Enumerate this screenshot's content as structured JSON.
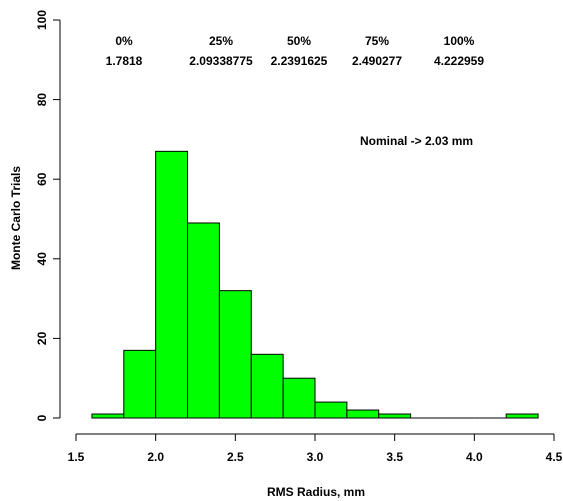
{
  "chart_data": {
    "type": "bar",
    "subtype": "histogram",
    "xlabel": "RMS Radius, mm",
    "ylabel": "Monte Carlo Trials",
    "xlim": [
      1.5,
      4.5
    ],
    "ylim": [
      0,
      100
    ],
    "x_ticks": [
      "1.5",
      "2.0",
      "2.5",
      "3.0",
      "3.5",
      "4.0",
      "4.5"
    ],
    "y_ticks": [
      "0",
      "20",
      "40",
      "60",
      "80",
      "100"
    ],
    "bar_color": "#00ff00",
    "edge_color": "#000000",
    "grid": false,
    "legend": "none",
    "bins": [
      {
        "start": 1.6,
        "end": 1.8,
        "count": 1
      },
      {
        "start": 1.8,
        "end": 2.0,
        "count": 17
      },
      {
        "start": 2.0,
        "end": 2.2,
        "count": 67
      },
      {
        "start": 2.2,
        "end": 2.4,
        "count": 49
      },
      {
        "start": 2.4,
        "end": 2.6,
        "count": 32
      },
      {
        "start": 2.6,
        "end": 2.8,
        "count": 16
      },
      {
        "start": 2.8,
        "end": 3.0,
        "count": 10
      },
      {
        "start": 3.0,
        "end": 3.2,
        "count": 4
      },
      {
        "start": 3.2,
        "end": 3.4,
        "count": 2
      },
      {
        "start": 3.4,
        "end": 3.6,
        "count": 1
      },
      {
        "start": 3.6,
        "end": 3.8,
        "count": 0
      },
      {
        "start": 3.8,
        "end": 4.0,
        "count": 0
      },
      {
        "start": 4.0,
        "end": 4.2,
        "count": 0
      },
      {
        "start": 4.2,
        "end": 4.4,
        "count": 1
      }
    ],
    "quantiles": [
      {
        "label": "0%",
        "value": "1.7818"
      },
      {
        "label": "25%",
        "value": "2.09338775"
      },
      {
        "label": "50%",
        "value": "2.2391625"
      },
      {
        "label": "75%",
        "value": "2.490277"
      },
      {
        "label": "100%",
        "value": "4.222959"
      }
    ],
    "annotation": "Nominal -> 2.03 mm"
  }
}
